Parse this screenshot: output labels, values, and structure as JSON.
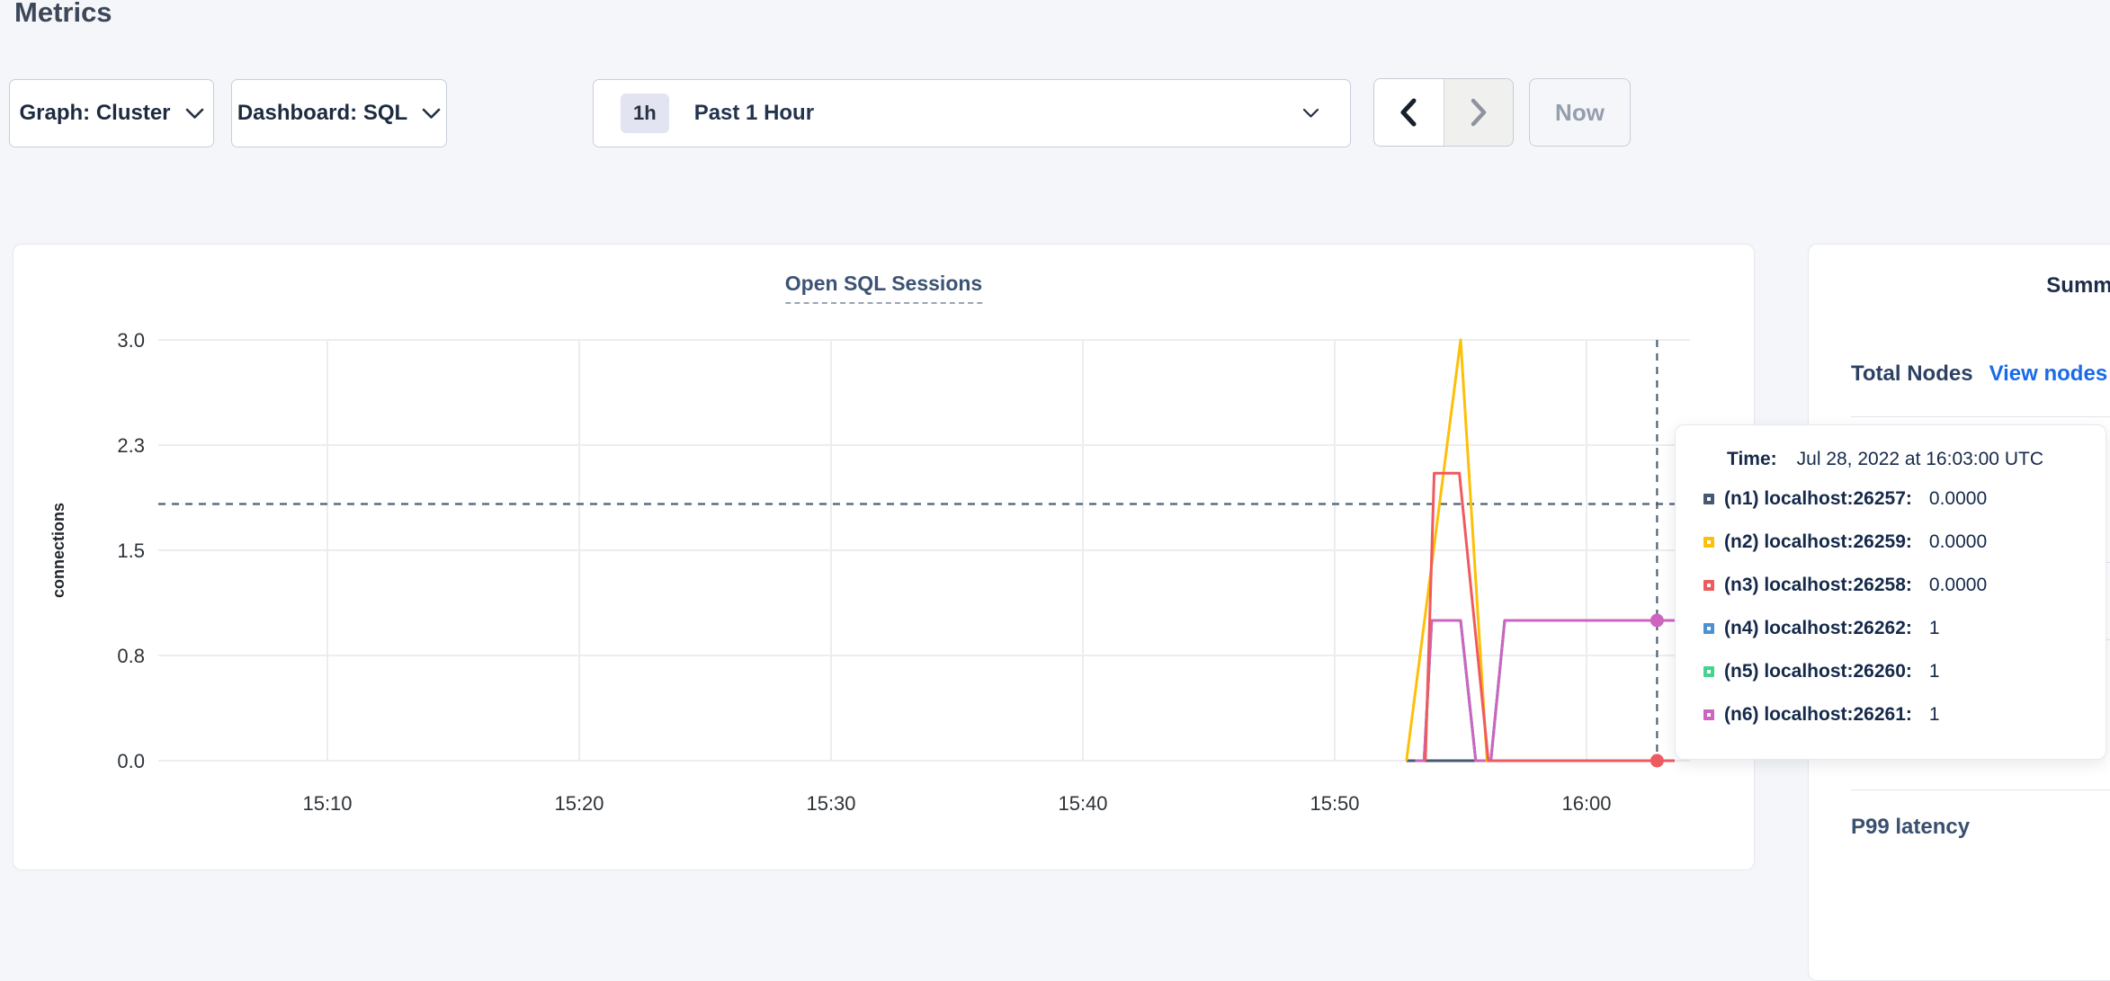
{
  "page": {
    "title": "Metrics"
  },
  "controls": {
    "graph_dropdown": "Graph: Cluster",
    "dashboard_dropdown": "Dashboard: SQL",
    "range_badge": "1h",
    "range_label": "Past 1 Hour",
    "now_button": "Now"
  },
  "chart_data": {
    "type": "line",
    "title": "Open SQL Sessions",
    "ylabel": "connections",
    "xlabel": "",
    "ylim": [
      0,
      3
    ],
    "grid": true,
    "x_domain_minutes_after_1500": [
      3.3,
      64.1
    ],
    "y_ticks": [
      {
        "label": "3.0",
        "v": 3
      },
      {
        "label": "2.3",
        "v": 2.25
      },
      {
        "label": "1.5",
        "v": 1.5
      },
      {
        "label": "0.8",
        "v": 0.75
      },
      {
        "label": "0.0",
        "v": 0
      }
    ],
    "x_ticks": [
      {
        "label": "15:10",
        "t": 10
      },
      {
        "label": "15:20",
        "t": 20
      },
      {
        "label": "15:30",
        "t": 30
      },
      {
        "label": "15:40",
        "t": 40
      },
      {
        "label": "15:50",
        "t": 50
      },
      {
        "label": "16:00",
        "t": 60
      }
    ],
    "series": [
      {
        "name": "(n1) localhost:26257",
        "color": "#475970",
        "value_at_cursor": "0.0000",
        "end_dot": false,
        "points": [
          [
            52.85,
            0
          ],
          [
            63.5,
            0
          ]
        ]
      },
      {
        "name": "(n2) localhost:26259",
        "color": "#fdc008",
        "value_at_cursor": "0.0000",
        "end_dot": false,
        "points": [
          [
            52.85,
            0
          ],
          [
            55.0,
            3
          ],
          [
            56.05,
            0
          ],
          [
            63.5,
            0
          ]
        ]
      },
      {
        "name": "(n3) localhost:26258",
        "color": "#ef5a5e",
        "value_at_cursor": "0.0000",
        "end_dot": true,
        "points": [
          [
            53.6,
            0
          ],
          [
            53.95,
            2.05
          ],
          [
            54.95,
            2.05
          ],
          [
            56.1,
            0
          ],
          [
            63.5,
            0
          ]
        ]
      },
      {
        "name": "(n4) localhost:26262",
        "color": "#4b91d4",
        "value_at_cursor": "1",
        "end_dot": false,
        "points": [
          [
            53.2,
            0
          ],
          [
            53.55,
            0
          ],
          [
            53.85,
            1
          ],
          [
            55.0,
            1
          ],
          [
            55.6,
            0
          ],
          [
            56.2,
            0
          ],
          [
            56.75,
            1
          ],
          [
            63.5,
            1
          ]
        ]
      },
      {
        "name": "(n5) localhost:26260",
        "color": "#45d38f",
        "value_at_cursor": "1",
        "end_dot": false,
        "points": [
          [
            53.2,
            0
          ],
          [
            53.55,
            0
          ],
          [
            53.85,
            1
          ],
          [
            55.0,
            1
          ],
          [
            55.6,
            0
          ],
          [
            56.2,
            0
          ],
          [
            56.75,
            1
          ],
          [
            63.5,
            1
          ]
        ]
      },
      {
        "name": "(n6) localhost:26261",
        "color": "#cd64c0",
        "value_at_cursor": "1",
        "end_dot": true,
        "points": [
          [
            53.2,
            0
          ],
          [
            53.55,
            0
          ],
          [
            53.85,
            1
          ],
          [
            55.0,
            1
          ],
          [
            55.6,
            0
          ],
          [
            56.2,
            0
          ],
          [
            56.75,
            1
          ],
          [
            63.5,
            1
          ]
        ]
      }
    ],
    "draw_order": [
      0,
      3,
      4,
      5,
      1,
      2
    ],
    "cursor": {
      "t": 62.8,
      "hover_value": 1.83,
      "time": "Jul 28, 2022 at 16:03:00 UTC"
    },
    "colors": {
      "crosshair": "#4e6173",
      "gridline": "#ebedf0",
      "tick_text": "#2e3338",
      "axis_label_text": "#22262c"
    }
  },
  "tooltip": {
    "time_label": "Time:",
    "time_value": "Jul 28, 2022 at 16:03:00 UTC",
    "rows": [
      {
        "label": "(n1) localhost:26257:",
        "value": "0.0000"
      },
      {
        "label": "(n2) localhost:26259:",
        "value": "0.0000"
      },
      {
        "label": "(n3) localhost:26258:",
        "value": "0.0000"
      },
      {
        "label": "(n4) localhost:26262:",
        "value": "1"
      },
      {
        "label": "(n5) localhost:26260:",
        "value": "1"
      },
      {
        "label": "(n6) localhost:26261:",
        "value": "1"
      }
    ]
  },
  "sidebar": {
    "title": "Summary",
    "total_nodes_label": "Total Nodes",
    "view_nodes_link": "View nodes",
    "p99_label": "P99 latency",
    "link_color": "#1a6be8"
  }
}
